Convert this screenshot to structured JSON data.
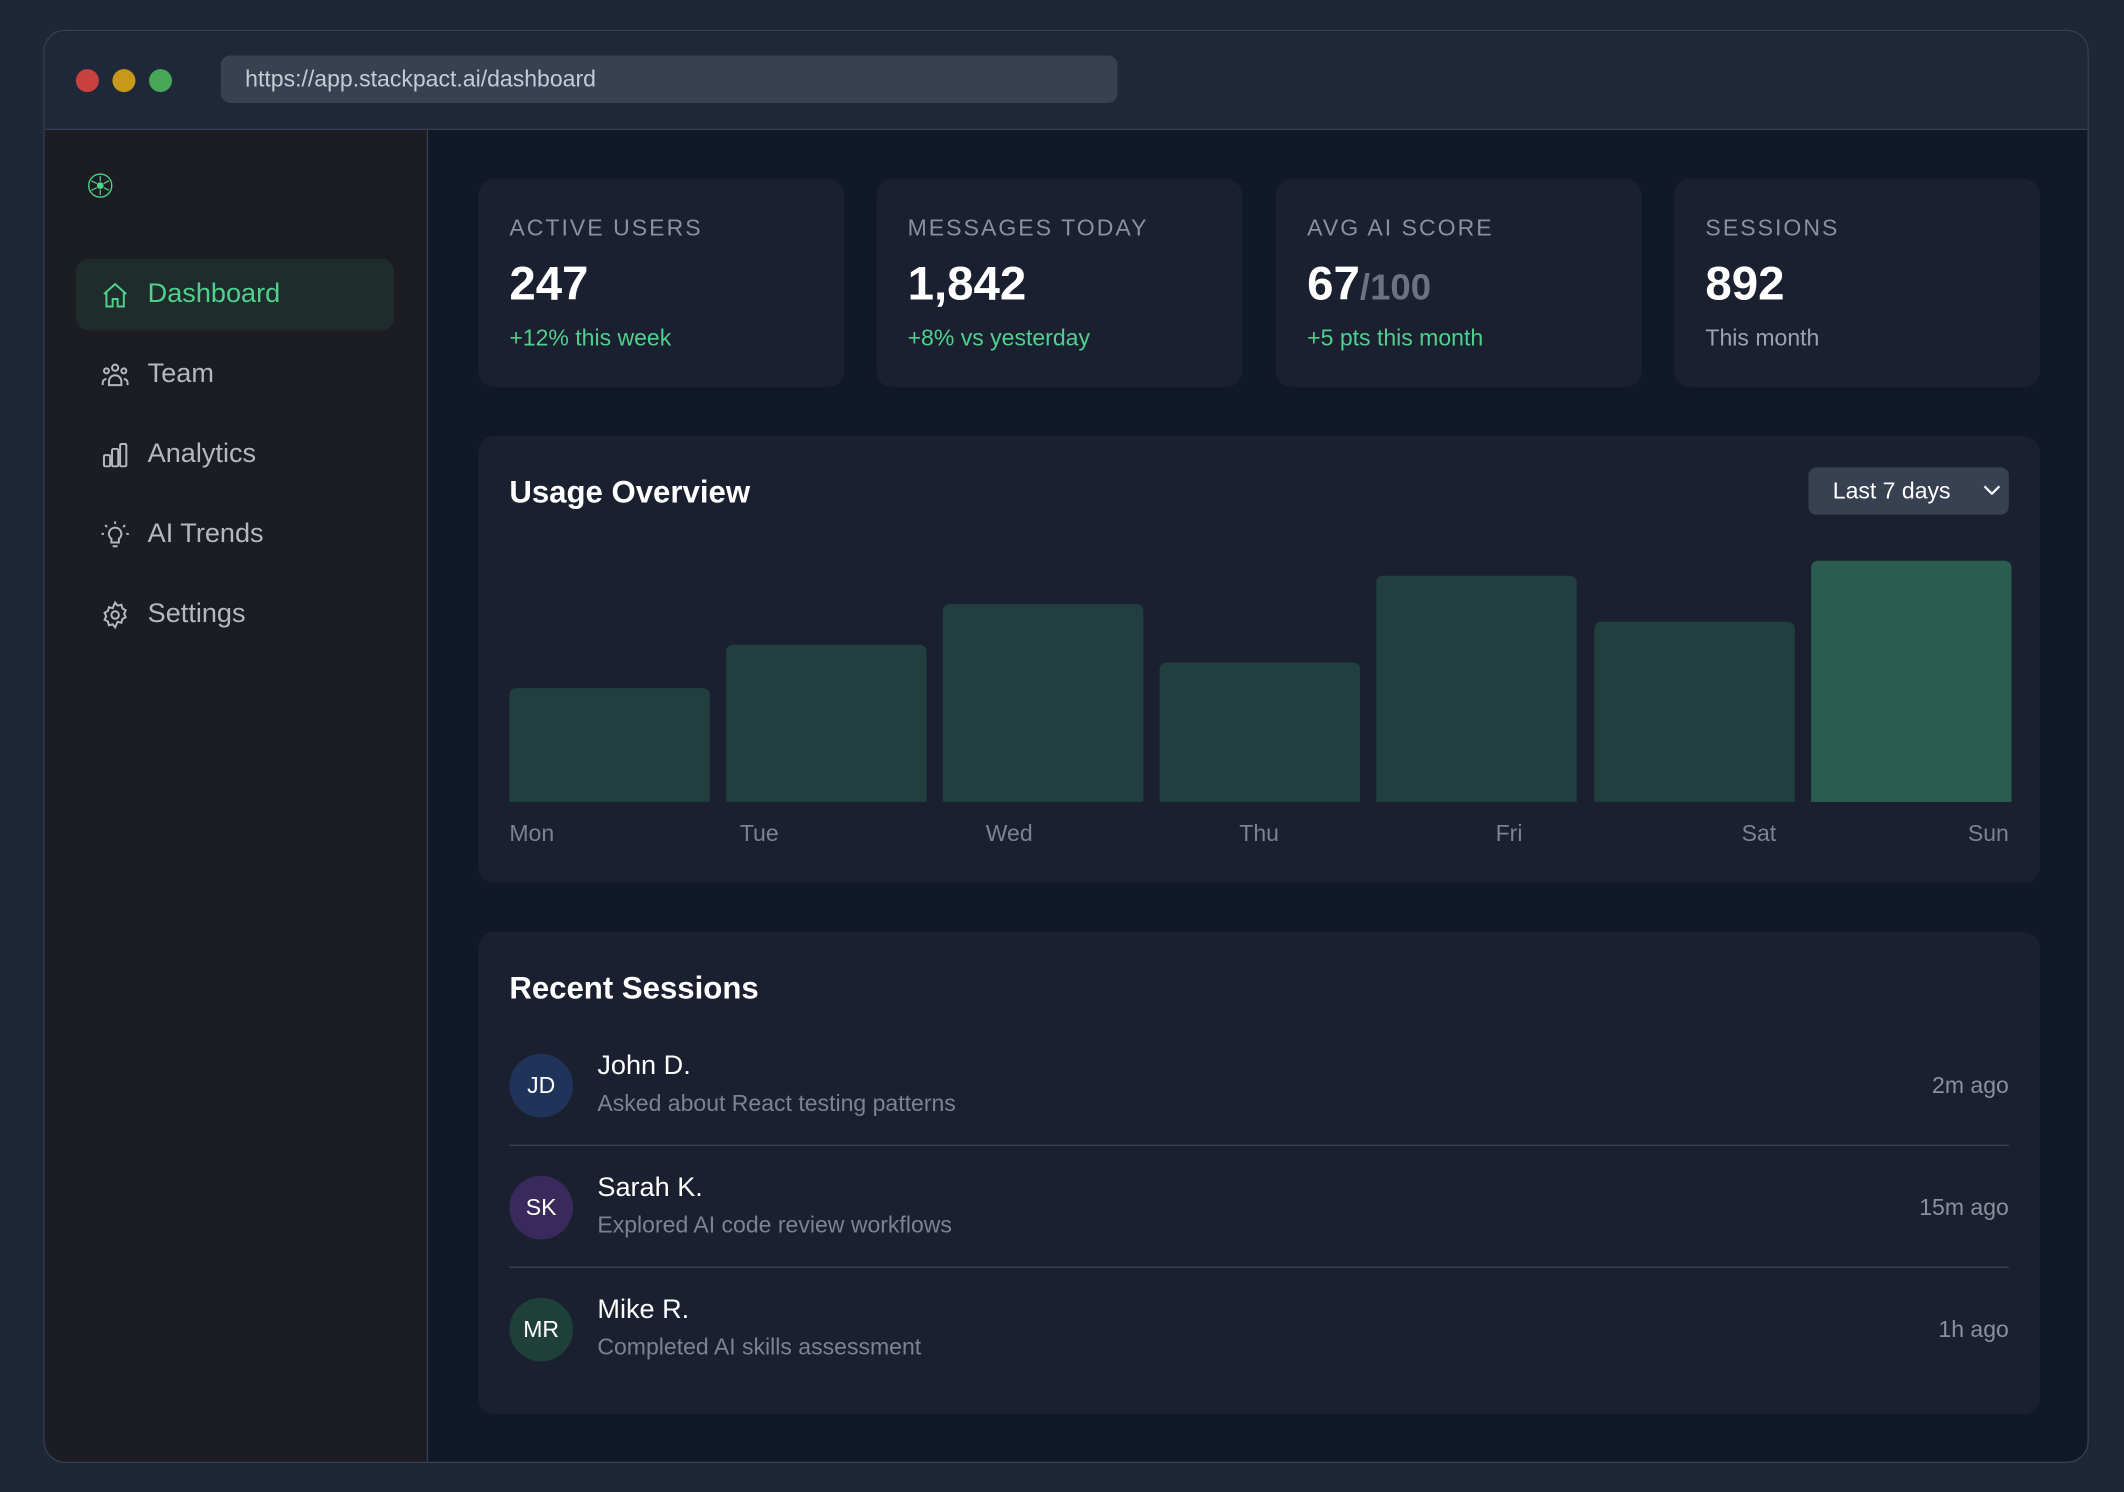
{
  "browser": {
    "url": "https://app.stackpact.ai/dashboard",
    "dots": [
      "#c9413f",
      "#c6991a",
      "#46a855"
    ]
  },
  "sidebar": {
    "items": [
      {
        "label": "Dashboard",
        "icon": "home-icon",
        "active": true
      },
      {
        "label": "Team",
        "icon": "users-icon"
      },
      {
        "label": "Analytics",
        "icon": "bar-chart-icon"
      },
      {
        "label": "AI Trends",
        "icon": "lightbulb-icon"
      },
      {
        "label": "Settings",
        "icon": "gear-icon"
      }
    ]
  },
  "stats": [
    {
      "label": "ACTIVE USERS",
      "value": "247",
      "suffix": "",
      "sub": "+12% this week"
    },
    {
      "label": "MESSAGES TODAY",
      "value": "1,842",
      "suffix": "",
      "sub": "+8% vs yesterday"
    },
    {
      "label": "AVG AI SCORE",
      "value": "67",
      "suffix": "/100",
      "sub": "+5 pts this month"
    },
    {
      "label": "SESSIONS",
      "value": "892",
      "suffix": "",
      "sub": "This month"
    }
  ],
  "usage": {
    "title": "Usage Overview",
    "range": "Last 7 days"
  },
  "chart_data": {
    "type": "bar",
    "categories": [
      "Mon",
      "Tue",
      "Wed",
      "Thu",
      "Fri",
      "Sat",
      "Sun"
    ],
    "values": [
      47,
      65,
      82,
      58,
      94,
      75,
      100
    ],
    "note_scale": "relative heights, no axis printed",
    "highlight": "Sun",
    "colors": {
      "bar": "#213f3f",
      "highlight": "#2a5c4f"
    }
  },
  "recent": {
    "title": "Recent Sessions",
    "items": [
      {
        "initials": "JD",
        "name": "John D.",
        "desc": "Asked about React testing patterns",
        "time": "2m ago",
        "color": "#1f3458"
      },
      {
        "initials": "SK",
        "name": "Sarah K.",
        "desc": "Explored AI code review workflows",
        "time": "15m ago",
        "color": "#3a2a5c"
      },
      {
        "initials": "MR",
        "name": "Mike R.",
        "desc": "Completed AI skills assessment",
        "time": "1h ago",
        "color": "#1f4038"
      }
    ]
  },
  "colors": {
    "accent": "#4fd08c",
    "card": "#1a2030",
    "main": "#111827",
    "sidebar": "#1c1d22"
  }
}
